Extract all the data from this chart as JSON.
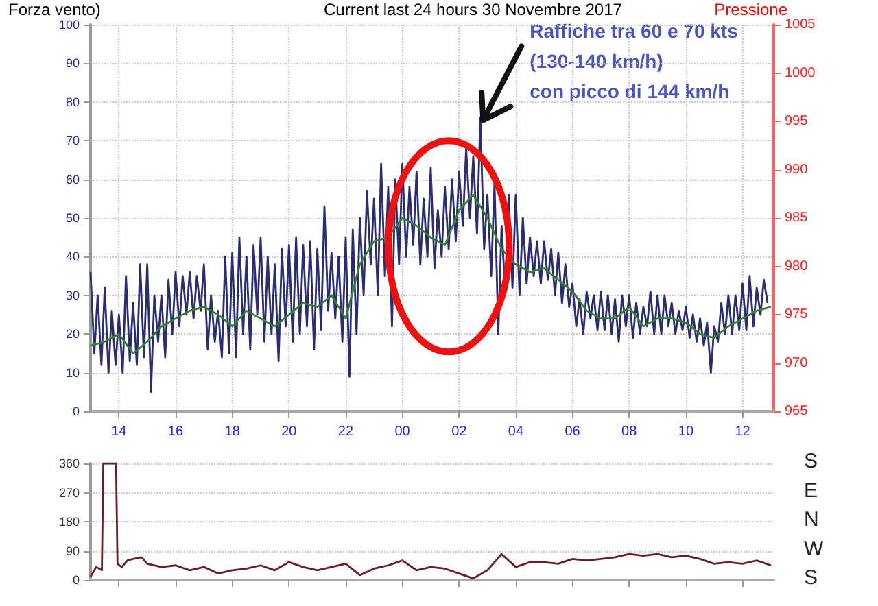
{
  "chart_data": [
    {
      "type": "line",
      "title": "Current last 24 hours 30 Novembre 2017",
      "ylabel": "Forza vento)",
      "y2label": "Pressione",
      "annotations": [
        {
          "text": "Raffiche tra 60 e 70 kts\n(130-140 km/h)\ncon picco di 144 km/h",
          "x": "2017-11-30T02:45",
          "y": 76
        }
      ],
      "xlim": [
        "2017-11-29T13:00",
        "2017-11-30T13:06"
      ],
      "xticks": [
        {
          "value": "2017-11-29T14:00",
          "label": "14"
        },
        {
          "value": "2017-11-29T16:00",
          "label": "16"
        },
        {
          "value": "2017-11-29T18:00",
          "label": "18"
        },
        {
          "value": "2017-11-29T20:00",
          "label": "20"
        },
        {
          "value": "2017-11-29T22:00",
          "label": "22"
        },
        {
          "value": "2017-11-30T00:00",
          "label": "00"
        },
        {
          "value": "2017-11-30T02:00",
          "label": "02"
        },
        {
          "value": "2017-11-30T04:00",
          "label": "04"
        },
        {
          "value": "2017-11-30T06:00",
          "label": "06"
        },
        {
          "value": "2017-11-30T08:00",
          "label": "08"
        },
        {
          "value": "2017-11-30T10:00",
          "label": "10"
        },
        {
          "value": "2017-11-30T12:00",
          "label": "12"
        }
      ],
      "ylim": [
        0,
        100
      ],
      "yticks": [
        0,
        10,
        20,
        30,
        40,
        50,
        60,
        70,
        80,
        90,
        100
      ],
      "y2lim": [
        965,
        1005
      ],
      "y2ticks": [
        965,
        970,
        975,
        980,
        985,
        990,
        995,
        1000,
        1005
      ],
      "grid": true,
      "marker": "none",
      "series": [
        {
          "color": "#2a2d72",
          "x": [
            "2017-11-29T13:00",
            "2017-11-29T13:08",
            "2017-11-29T13:15",
            "2017-11-29T13:23",
            "2017-11-29T13:30",
            "2017-11-29T13:38",
            "2017-11-29T13:45",
            "2017-11-29T13:53",
            "2017-11-29T14:00",
            "2017-11-29T14:08",
            "2017-11-29T14:15",
            "2017-11-29T14:23",
            "2017-11-29T14:30",
            "2017-11-29T14:38",
            "2017-11-29T14:45",
            "2017-11-29T14:53",
            "2017-11-29T15:00",
            "2017-11-29T15:08",
            "2017-11-29T15:15",
            "2017-11-29T15:23",
            "2017-11-29T15:30",
            "2017-11-29T15:38",
            "2017-11-29T15:45",
            "2017-11-29T15:53",
            "2017-11-29T16:00",
            "2017-11-29T16:08",
            "2017-11-29T16:15",
            "2017-11-29T16:23",
            "2017-11-29T16:30",
            "2017-11-29T16:38",
            "2017-11-29T16:45",
            "2017-11-29T16:53",
            "2017-11-29T17:00",
            "2017-11-29T17:08",
            "2017-11-29T17:15",
            "2017-11-29T17:23",
            "2017-11-29T17:30",
            "2017-11-29T17:38",
            "2017-11-29T17:45",
            "2017-11-29T17:53",
            "2017-11-29T18:00",
            "2017-11-29T18:08",
            "2017-11-29T18:15",
            "2017-11-29T18:23",
            "2017-11-29T18:30",
            "2017-11-29T18:38",
            "2017-11-29T18:45",
            "2017-11-29T18:53",
            "2017-11-29T19:00",
            "2017-11-29T19:08",
            "2017-11-29T19:15",
            "2017-11-29T19:23",
            "2017-11-29T19:30",
            "2017-11-29T19:38",
            "2017-11-29T19:45",
            "2017-11-29T19:53",
            "2017-11-29T20:00",
            "2017-11-29T20:08",
            "2017-11-29T20:15",
            "2017-11-29T20:23",
            "2017-11-29T20:30",
            "2017-11-29T20:38",
            "2017-11-29T20:45",
            "2017-11-29T20:53",
            "2017-11-29T21:00",
            "2017-11-29T21:08",
            "2017-11-29T21:15",
            "2017-11-29T21:23",
            "2017-11-29T21:30",
            "2017-11-29T21:38",
            "2017-11-29T21:45",
            "2017-11-29T21:53",
            "2017-11-29T22:00",
            "2017-11-29T22:08",
            "2017-11-29T22:15",
            "2017-11-29T22:23",
            "2017-11-29T22:30",
            "2017-11-29T22:38",
            "2017-11-29T22:45",
            "2017-11-29T22:53",
            "2017-11-29T23:00",
            "2017-11-29T23:08",
            "2017-11-29T23:15",
            "2017-11-29T23:23",
            "2017-11-29T23:30",
            "2017-11-29T23:38",
            "2017-11-29T23:45",
            "2017-11-29T23:53",
            "2017-11-30T00:00",
            "2017-11-30T00:08",
            "2017-11-30T00:15",
            "2017-11-30T00:23",
            "2017-11-30T00:30",
            "2017-11-30T00:38",
            "2017-11-30T00:45",
            "2017-11-30T00:53",
            "2017-11-30T01:00",
            "2017-11-30T01:08",
            "2017-11-30T01:15",
            "2017-11-30T01:23",
            "2017-11-30T01:30",
            "2017-11-30T01:38",
            "2017-11-30T01:45",
            "2017-11-30T01:53",
            "2017-11-30T02:00",
            "2017-11-30T02:08",
            "2017-11-30T02:15",
            "2017-11-30T02:23",
            "2017-11-30T02:30",
            "2017-11-30T02:38",
            "2017-11-30T02:45",
            "2017-11-30T02:53",
            "2017-11-30T03:00",
            "2017-11-30T03:08",
            "2017-11-30T03:15",
            "2017-11-30T03:23",
            "2017-11-30T03:30",
            "2017-11-30T03:38",
            "2017-11-30T03:45",
            "2017-11-30T03:53",
            "2017-11-30T04:00",
            "2017-11-30T04:08",
            "2017-11-30T04:15",
            "2017-11-30T04:23",
            "2017-11-30T04:30",
            "2017-11-30T04:38",
            "2017-11-30T04:45",
            "2017-11-30T04:53",
            "2017-11-30T05:00",
            "2017-11-30T05:08",
            "2017-11-30T05:15",
            "2017-11-30T05:23",
            "2017-11-30T05:30",
            "2017-11-30T05:38",
            "2017-11-30T05:45",
            "2017-11-30T05:53",
            "2017-11-30T06:00",
            "2017-11-30T06:08",
            "2017-11-30T06:15",
            "2017-11-30T06:23",
            "2017-11-30T06:30",
            "2017-11-30T06:38",
            "2017-11-30T06:45",
            "2017-11-30T06:53",
            "2017-11-30T07:00",
            "2017-11-30T07:08",
            "2017-11-30T07:15",
            "2017-11-30T07:23",
            "2017-11-30T07:30",
            "2017-11-30T07:38",
            "2017-11-30T07:45",
            "2017-11-30T07:53",
            "2017-11-30T08:00",
            "2017-11-30T08:08",
            "2017-11-30T08:15",
            "2017-11-30T08:23",
            "2017-11-30T08:30",
            "2017-11-30T08:38",
            "2017-11-30T08:45",
            "2017-11-30T08:53",
            "2017-11-30T09:00",
            "2017-11-30T09:08",
            "2017-11-30T09:15",
            "2017-11-30T09:23",
            "2017-11-30T09:30",
            "2017-11-30T09:38",
            "2017-11-30T09:45",
            "2017-11-30T09:53",
            "2017-11-30T10:00",
            "2017-11-30T10:08",
            "2017-11-30T10:15",
            "2017-11-30T10:23",
            "2017-11-30T10:30",
            "2017-11-30T10:38",
            "2017-11-30T10:45",
            "2017-11-30T10:53",
            "2017-11-30T11:00",
            "2017-11-30T11:08",
            "2017-11-30T11:15",
            "2017-11-30T11:23",
            "2017-11-30T11:30",
            "2017-11-30T11:38",
            "2017-11-30T11:45",
            "2017-11-30T11:53",
            "2017-11-30T12:00",
            "2017-11-30T12:08",
            "2017-11-30T12:15",
            "2017-11-30T12:23",
            "2017-11-30T12:30",
            "2017-11-30T12:38",
            "2017-11-30T12:45",
            "2017-11-30T12:53"
          ],
          "values": [
            36,
            15,
            30,
            12,
            32,
            10,
            26,
            12,
            25,
            10,
            35,
            13,
            28,
            12,
            38,
            14,
            38,
            5,
            30,
            18,
            30,
            14,
            34,
            20,
            36,
            22,
            35,
            25,
            36,
            24,
            35,
            26,
            38,
            16,
            30,
            18,
            26,
            14,
            40,
            15,
            41,
            14,
            45,
            20,
            40,
            16,
            43,
            25,
            45,
            18,
            40,
            20,
            38,
            13,
            42,
            22,
            43,
            18,
            45,
            20,
            43,
            22,
            44,
            16,
            42,
            21,
            53,
            26,
            41,
            24,
            40,
            18,
            45,
            9,
            47,
            20,
            50,
            30,
            57,
            38,
            55,
            30,
            64,
            35,
            58,
            22,
            60,
            38,
            64,
            40,
            58,
            43,
            62,
            38,
            55,
            40,
            63,
            37,
            52,
            40,
            58,
            42,
            60,
            44,
            62,
            48,
            68,
            50,
            66,
            46,
            76,
            42,
            56,
            35,
            59,
            20,
            48,
            30,
            56,
            32,
            56,
            30,
            50,
            33,
            45,
            35,
            44,
            33,
            44,
            34,
            42,
            30,
            41,
            28,
            38,
            27,
            33,
            22,
            29,
            20,
            31,
            24,
            30,
            21,
            31,
            21,
            30,
            20,
            29,
            18,
            30,
            22,
            30,
            19,
            28,
            20,
            27,
            22,
            31,
            20,
            30,
            20,
            30,
            22,
            28,
            20,
            26,
            21,
            27,
            19,
            25,
            18,
            24,
            17,
            23,
            10,
            22,
            18,
            28,
            20,
            30,
            20,
            30,
            21,
            33,
            21,
            35,
            22,
            32,
            25,
            34,
            28
          ]
        },
        {
          "color": "#3c7d2c",
          "x": [
            "2017-11-29T13:00",
            "2017-11-29T13:30",
            "2017-11-29T14:00",
            "2017-11-29T14:30",
            "2017-11-29T15:00",
            "2017-11-29T15:30",
            "2017-11-29T16:00",
            "2017-11-29T16:30",
            "2017-11-29T17:00",
            "2017-11-29T17:30",
            "2017-11-29T18:00",
            "2017-11-29T18:30",
            "2017-11-29T19:00",
            "2017-11-29T19:30",
            "2017-11-29T20:00",
            "2017-11-29T20:30",
            "2017-11-29T21:00",
            "2017-11-29T21:30",
            "2017-11-29T22:00",
            "2017-11-29T22:30",
            "2017-11-29T23:00",
            "2017-11-29T23:30",
            "2017-11-30T00:00",
            "2017-11-30T00:30",
            "2017-11-30T01:00",
            "2017-11-30T01:30",
            "2017-11-30T02:00",
            "2017-11-30T02:30",
            "2017-11-30T03:00",
            "2017-11-30T03:30",
            "2017-11-30T04:00",
            "2017-11-30T04:30",
            "2017-11-30T05:00",
            "2017-11-30T05:30",
            "2017-11-30T06:00",
            "2017-11-30T06:30",
            "2017-11-30T07:00",
            "2017-11-30T07:30",
            "2017-11-30T08:00",
            "2017-11-30T08:30",
            "2017-11-30T09:00",
            "2017-11-30T09:30",
            "2017-11-30T10:00",
            "2017-11-30T10:30",
            "2017-11-30T11:00",
            "2017-11-30T11:30",
            "2017-11-30T12:00",
            "2017-11-30T12:30",
            "2017-11-30T13:00"
          ],
          "values": [
            17,
            18,
            20,
            15,
            18,
            22,
            24,
            26,
            27,
            25,
            22,
            26,
            24,
            22,
            25,
            28,
            27,
            30,
            24,
            38,
            44,
            45,
            50,
            48,
            45,
            43,
            52,
            56,
            50,
            42,
            38,
            36,
            37,
            34,
            31,
            26,
            24,
            24,
            27,
            22,
            24,
            24,
            23,
            20,
            19,
            22,
            24,
            26,
            27
          ]
        }
      ]
    },
    {
      "type": "line",
      "xlim": [
        "2017-11-29T13:00",
        "2017-11-30T13:06"
      ],
      "xticks": [
        {
          "value": "2017-11-29T14:00",
          "label": null
        },
        {
          "value": "2017-11-29T16:00",
          "label": null
        },
        {
          "value": "2017-11-29T18:00",
          "label": null
        },
        {
          "value": "2017-11-29T20:00",
          "label": null
        },
        {
          "value": "2017-11-29T22:00",
          "label": null
        },
        {
          "value": "2017-11-30T00:00",
          "label": null
        },
        {
          "value": "2017-11-30T02:00",
          "label": null
        },
        {
          "value": "2017-11-30T04:00",
          "label": null
        },
        {
          "value": "2017-11-30T06:00",
          "label": null
        },
        {
          "value": "2017-11-30T08:00",
          "label": null
        },
        {
          "value": "2017-11-30T10:00",
          "label": null
        },
        {
          "value": "2017-11-30T12:00",
          "label": null
        }
      ],
      "ylim": [
        0,
        360
      ],
      "yticks": [
        0,
        90,
        180,
        270,
        360
      ],
      "annotations": [
        "S",
        "E",
        "N",
        "W",
        "S"
      ],
      "grid": "y",
      "marker": "none",
      "tick_labels": "y",
      "series": [
        {
          "color": "#6b1f1f",
          "x": [
            "2017-11-29T13:00",
            "2017-11-29T13:12",
            "2017-11-29T13:24",
            "2017-11-29T13:27",
            "2017-11-29T13:54",
            "2017-11-29T13:57",
            "2017-11-29T14:06",
            "2017-11-29T14:18",
            "2017-11-29T14:30",
            "2017-11-29T14:48",
            "2017-11-29T15:00",
            "2017-11-29T15:30",
            "2017-11-29T16:00",
            "2017-11-29T16:30",
            "2017-11-29T17:00",
            "2017-11-29T17:30",
            "2017-11-29T18:00",
            "2017-11-29T18:30",
            "2017-11-29T19:00",
            "2017-11-29T19:30",
            "2017-11-29T20:00",
            "2017-11-29T20:30",
            "2017-11-29T21:00",
            "2017-11-29T21:30",
            "2017-11-29T22:00",
            "2017-11-29T22:30",
            "2017-11-29T23:00",
            "2017-11-29T23:30",
            "2017-11-30T00:00",
            "2017-11-30T00:30",
            "2017-11-30T01:00",
            "2017-11-30T01:30",
            "2017-11-30T02:00",
            "2017-11-30T02:30",
            "2017-11-30T03:00",
            "2017-11-30T03:30",
            "2017-11-30T04:00",
            "2017-11-30T04:30",
            "2017-11-30T05:00",
            "2017-11-30T05:30",
            "2017-11-30T06:00",
            "2017-11-30T06:30",
            "2017-11-30T07:00",
            "2017-11-30T07:30",
            "2017-11-30T08:00",
            "2017-11-30T08:30",
            "2017-11-30T09:00",
            "2017-11-30T09:30",
            "2017-11-30T10:00",
            "2017-11-30T10:30",
            "2017-11-30T11:00",
            "2017-11-30T11:30",
            "2017-11-30T12:00",
            "2017-11-30T12:30",
            "2017-11-30T13:00"
          ],
          "values": [
            10,
            40,
            30,
            360,
            360,
            50,
            40,
            60,
            65,
            70,
            50,
            40,
            45,
            30,
            40,
            20,
            30,
            35,
            45,
            30,
            55,
            40,
            30,
            40,
            50,
            15,
            35,
            45,
            60,
            30,
            40,
            35,
            20,
            5,
            30,
            80,
            40,
            55,
            55,
            50,
            65,
            60,
            65,
            70,
            80,
            75,
            80,
            70,
            75,
            65,
            50,
            55,
            50,
            60,
            45
          ]
        }
      ]
    }
  ]
}
